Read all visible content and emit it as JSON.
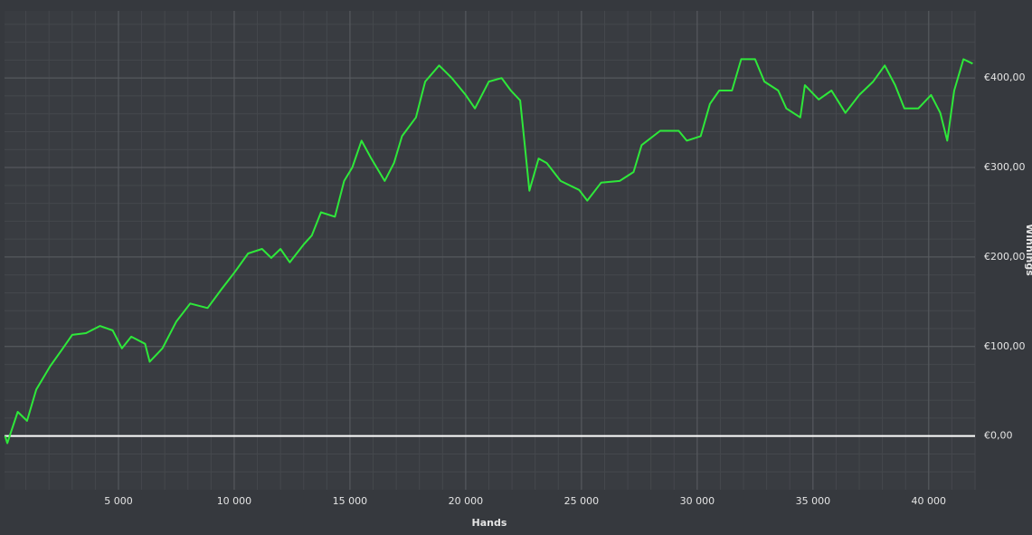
{
  "chart_data": {
    "type": "line",
    "x_label": "Hands",
    "y_label": "Winnings",
    "xlim": [
      0,
      42000
    ],
    "ylim": [
      -60,
      475
    ],
    "xticks": [
      {
        "value": 5000,
        "label": "5 000"
      },
      {
        "value": 10000,
        "label": "10 000"
      },
      {
        "value": 15000,
        "label": "15 000"
      },
      {
        "value": 20000,
        "label": "20 000"
      },
      {
        "value": 25000,
        "label": "25 000"
      },
      {
        "value": 30000,
        "label": "30 000"
      },
      {
        "value": 35000,
        "label": "35 000"
      },
      {
        "value": 40000,
        "label": "40 000"
      }
    ],
    "yticks": [
      {
        "value": 400,
        "label": "€400,00"
      },
      {
        "value": 300,
        "label": "€300,00"
      },
      {
        "value": 200,
        "label": "€200,00"
      },
      {
        "value": 100,
        "label": "€100,00"
      },
      {
        "value": 0,
        "label": "€0,00"
      }
    ],
    "grid": true,
    "x": [
      100,
      200,
      350,
      650,
      1050,
      1450,
      2050,
      2600,
      3000,
      3600,
      4200,
      4750,
      5150,
      5550,
      6150,
      6350,
      6900,
      7500,
      8100,
      8850,
      9450,
      10050,
      10600,
      11200,
      11600,
      12000,
      12400,
      13000,
      13350,
      13750,
      14350,
      14750,
      15100,
      15500,
      15900,
      16500,
      16900,
      17250,
      17850,
      18250,
      18850,
      19400,
      20000,
      20400,
      21000,
      21550,
      21950,
      22350,
      22550,
      22750,
      23150,
      23500,
      24100,
      24900,
      25250,
      25850,
      26650,
      27250,
      27600,
      28400,
      29200,
      29550,
      30150,
      30550,
      30950,
      31500,
      31900,
      32500,
      32900,
      33500,
      33850,
      34450,
      34650,
      35250,
      35800,
      36400,
      37000,
      37600,
      38100,
      38550,
      38950,
      39550,
      40100,
      40500,
      40800,
      41100,
      41500,
      41900
    ],
    "series": [
      {
        "name": "Winnings",
        "color": "#2ee83a",
        "values": [
          0,
          -8,
          4,
          27,
          17,
          52,
          78,
          98,
          113,
          115,
          123,
          118,
          98,
          111,
          103,
          83,
          98,
          128,
          148,
          143,
          164,
          184,
          204,
          209,
          199,
          209,
          194,
          214,
          224,
          250,
          245,
          285,
          300,
          330,
          311,
          285,
          305,
          335,
          356,
          396,
          414,
          400,
          381,
          366,
          396,
          400,
          386,
          375,
          325,
          274,
          310,
          305,
          285,
          275,
          263,
          283,
          285,
          295,
          325,
          341,
          341,
          330,
          335,
          371,
          386,
          386,
          421,
          421,
          396,
          386,
          366,
          356,
          392,
          376,
          386,
          361,
          381,
          396,
          414,
          392,
          366,
          366,
          381,
          361,
          330,
          386,
          421,
          416
        ]
      }
    ]
  }
}
